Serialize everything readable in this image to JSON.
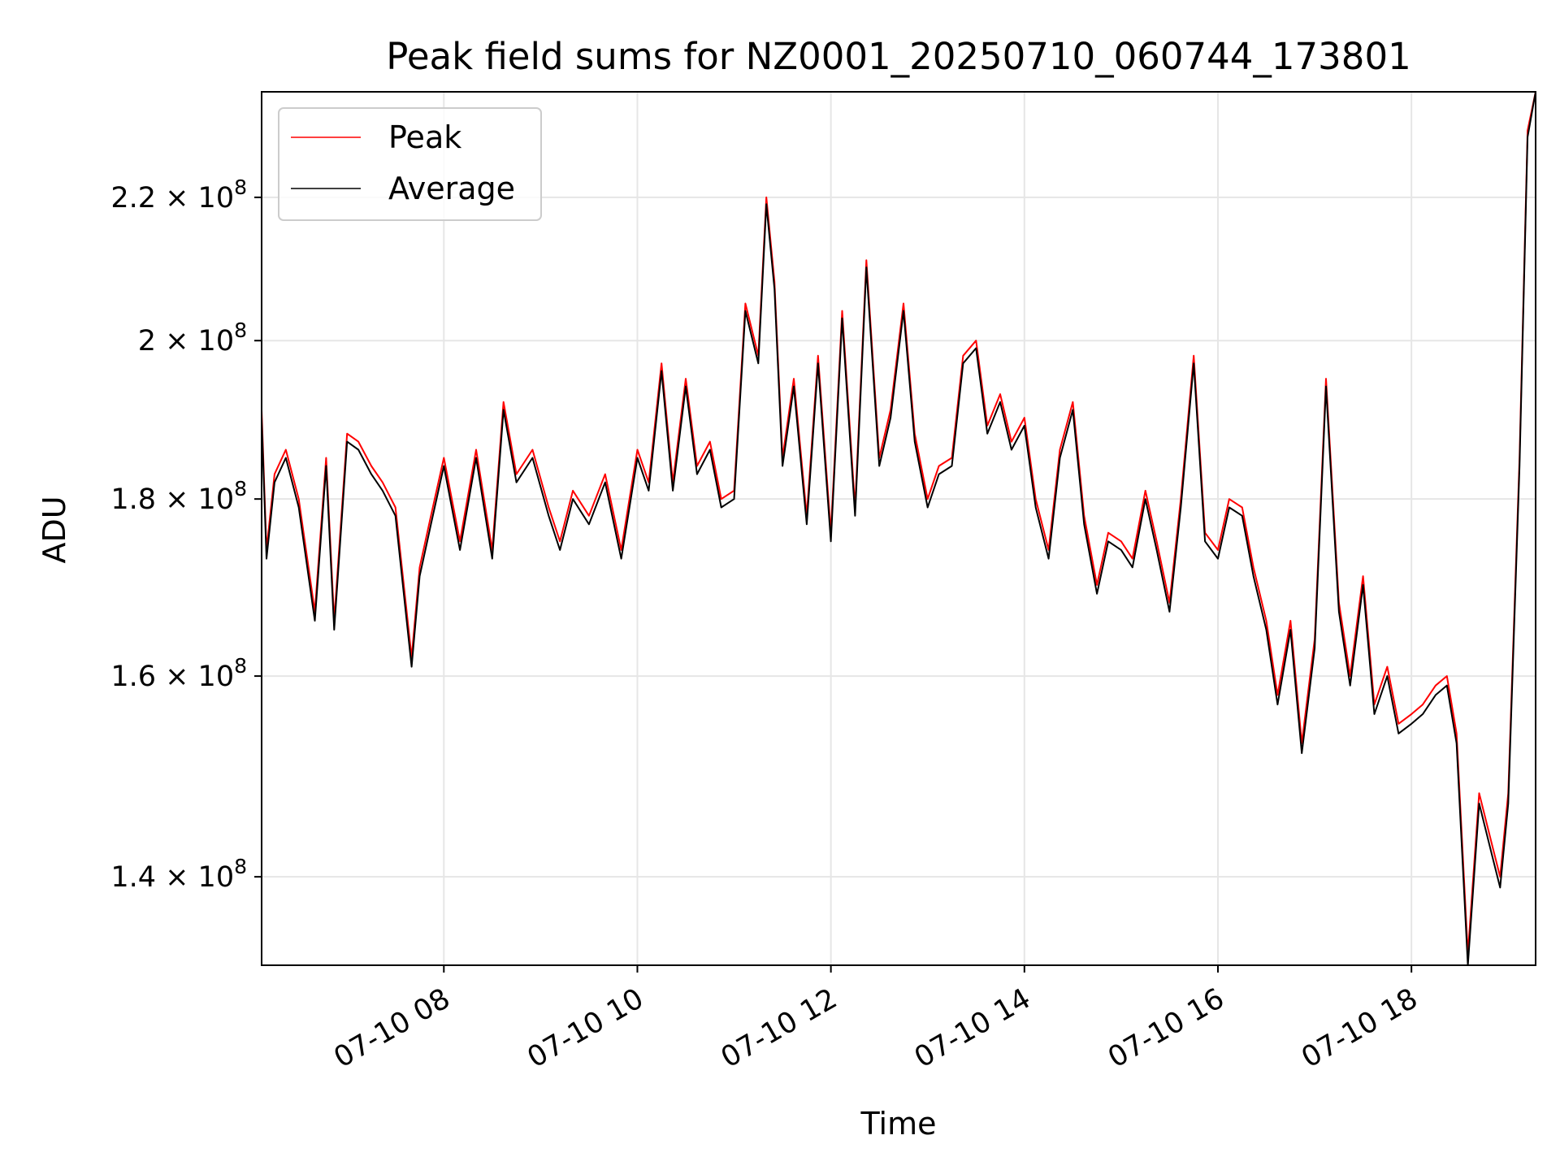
{
  "chart_data": {
    "type": "line",
    "title": "Peak field sums for NZ0001_20250710_060744_173801",
    "xlabel": "Time",
    "ylabel": "ADU",
    "yscale": "log",
    "grid": true,
    "legend": {
      "location": "top-left",
      "entries": [
        {
          "name": "Peak",
          "color": "#ff0000"
        },
        {
          "name": "Average",
          "color": "#000000"
        }
      ]
    },
    "xlim": [
      "2025-07-10 06:07",
      "2025-07-10 19:17"
    ],
    "ylim": [
      132000000.0,
      236000000.0
    ],
    "x_ticks": [
      {
        "value": "2025-07-10 08:00",
        "label": "07-10 08"
      },
      {
        "value": "2025-07-10 10:00",
        "label": "07-10 10"
      },
      {
        "value": "2025-07-10 12:00",
        "label": "07-10 12"
      },
      {
        "value": "2025-07-10 14:00",
        "label": "07-10 14"
      },
      {
        "value": "2025-07-10 16:00",
        "label": "07-10 16"
      },
      {
        "value": "2025-07-10 18:00",
        "label": "07-10 18"
      }
    ],
    "y_ticks": [
      {
        "value": 140000000.0,
        "mantissa": "1.4",
        "exponent": "8"
      },
      {
        "value": 160000000.0,
        "mantissa": "1.6",
        "exponent": "8"
      },
      {
        "value": 180000000.0,
        "mantissa": "1.8",
        "exponent": "8"
      },
      {
        "value": 200000000.0,
        "mantissa": "2",
        "exponent": "8"
      },
      {
        "value": 220000000.0,
        "mantissa": "2.2",
        "exponent": "8"
      }
    ],
    "series": [
      {
        "name": "Peak",
        "color": "#ff0000",
        "x": [
          "2025-07-10 06:07",
          "2025-07-10 06:10",
          "2025-07-10 06:15",
          "2025-07-10 06:22",
          "2025-07-10 06:30",
          "2025-07-10 06:40",
          "2025-07-10 06:47",
          "2025-07-10 06:52",
          "2025-07-10 07:00",
          "2025-07-10 07:07",
          "2025-07-10 07:15",
          "2025-07-10 07:22",
          "2025-07-10 07:30",
          "2025-07-10 07:40",
          "2025-07-10 07:45",
          "2025-07-10 07:52",
          "2025-07-10 08:00",
          "2025-07-10 08:10",
          "2025-07-10 08:20",
          "2025-07-10 08:30",
          "2025-07-10 08:37",
          "2025-07-10 08:45",
          "2025-07-10 08:55",
          "2025-07-10 09:05",
          "2025-07-10 09:12",
          "2025-07-10 09:20",
          "2025-07-10 09:30",
          "2025-07-10 09:40",
          "2025-07-10 09:50",
          "2025-07-10 10:00",
          "2025-07-10 10:07",
          "2025-07-10 10:15",
          "2025-07-10 10:22",
          "2025-07-10 10:30",
          "2025-07-10 10:37",
          "2025-07-10 10:45",
          "2025-07-10 10:52",
          "2025-07-10 11:00",
          "2025-07-10 11:07",
          "2025-07-10 11:15",
          "2025-07-10 11:20",
          "2025-07-10 11:25",
          "2025-07-10 11:30",
          "2025-07-10 11:37",
          "2025-07-10 11:45",
          "2025-07-10 11:52",
          "2025-07-10 12:00",
          "2025-07-10 12:07",
          "2025-07-10 12:15",
          "2025-07-10 12:22",
          "2025-07-10 12:30",
          "2025-07-10 12:37",
          "2025-07-10 12:45",
          "2025-07-10 12:52",
          "2025-07-10 13:00",
          "2025-07-10 13:07",
          "2025-07-10 13:15",
          "2025-07-10 13:22",
          "2025-07-10 13:30",
          "2025-07-10 13:37",
          "2025-07-10 13:45",
          "2025-07-10 13:52",
          "2025-07-10 14:00",
          "2025-07-10 14:07",
          "2025-07-10 14:15",
          "2025-07-10 14:22",
          "2025-07-10 14:30",
          "2025-07-10 14:37",
          "2025-07-10 14:45",
          "2025-07-10 14:52",
          "2025-07-10 15:00",
          "2025-07-10 15:07",
          "2025-07-10 15:15",
          "2025-07-10 15:22",
          "2025-07-10 15:30",
          "2025-07-10 15:37",
          "2025-07-10 15:45",
          "2025-07-10 15:52",
          "2025-07-10 16:00",
          "2025-07-10 16:07",
          "2025-07-10 16:15",
          "2025-07-10 16:22",
          "2025-07-10 16:30",
          "2025-07-10 16:37",
          "2025-07-10 16:45",
          "2025-07-10 16:52",
          "2025-07-10 17:00",
          "2025-07-10 17:07",
          "2025-07-10 17:15",
          "2025-07-10 17:22",
          "2025-07-10 17:30",
          "2025-07-10 17:37",
          "2025-07-10 17:45",
          "2025-07-10 17:52",
          "2025-07-10 18:00",
          "2025-07-10 18:07",
          "2025-07-10 18:15",
          "2025-07-10 18:22",
          "2025-07-10 18:28",
          "2025-07-10 18:35",
          "2025-07-10 18:42",
          "2025-07-10 18:50",
          "2025-07-10 18:55",
          "2025-07-10 19:00",
          "2025-07-10 19:07",
          "2025-07-10 19:12",
          "2025-07-10 19:17"
        ],
        "values": [
          191000000.0,
          174000000.0,
          183000000.0,
          186000000.0,
          180000000.0,
          167000000.0,
          185000000.0,
          166000000.0,
          188000000.0,
          187000000.0,
          184000000.0,
          182000000.0,
          179000000.0,
          162000000.0,
          172000000.0,
          178000000.0,
          185000000.0,
          175000000.0,
          186000000.0,
          174000000.0,
          192000000.0,
          183000000.0,
          186000000.0,
          179000000.0,
          175000000.0,
          181000000.0,
          178000000.0,
          183000000.0,
          174000000.0,
          186000000.0,
          182000000.0,
          197000000.0,
          182000000.0,
          195000000.0,
          184000000.0,
          187000000.0,
          180000000.0,
          181000000.0,
          205000000.0,
          198000000.0,
          220000000.0,
          208000000.0,
          185000000.0,
          195000000.0,
          178000000.0,
          198000000.0,
          176000000.0,
          204000000.0,
          179000000.0,
          211000000.0,
          185000000.0,
          191000000.0,
          205000000.0,
          188000000.0,
          180000000.0,
          184000000.0,
          185000000.0,
          198000000.0,
          200000000.0,
          189000000.0,
          193000000.0,
          187000000.0,
          190000000.0,
          180000000.0,
          174000000.0,
          186000000.0,
          192000000.0,
          178000000.0,
          170000000.0,
          176000000.0,
          175000000.0,
          173000000.0,
          181000000.0,
          175000000.0,
          168000000.0,
          180000000.0,
          198000000.0,
          176000000.0,
          174000000.0,
          180000000.0,
          179000000.0,
          172000000.0,
          166000000.0,
          158000000.0,
          166000000.0,
          153000000.0,
          164000000.0,
          195000000.0,
          168000000.0,
          160000000.0,
          171000000.0,
          157000000.0,
          161000000.0,
          155000000.0,
          156000000.0,
          157000000.0,
          159000000.0,
          160000000.0,
          154000000.0,
          133000000.0,
          148000000.0,
          143000000.0,
          140000000.0,
          148000000.0,
          185000000.0,
          230000000.0,
          236000000.0
        ]
      },
      {
        "name": "Average",
        "color": "#000000",
        "x": [
          "2025-07-10 06:07",
          "2025-07-10 06:10",
          "2025-07-10 06:15",
          "2025-07-10 06:22",
          "2025-07-10 06:30",
          "2025-07-10 06:40",
          "2025-07-10 06:47",
          "2025-07-10 06:52",
          "2025-07-10 07:00",
          "2025-07-10 07:07",
          "2025-07-10 07:15",
          "2025-07-10 07:22",
          "2025-07-10 07:30",
          "2025-07-10 07:40",
          "2025-07-10 07:45",
          "2025-07-10 07:52",
          "2025-07-10 08:00",
          "2025-07-10 08:10",
          "2025-07-10 08:20",
          "2025-07-10 08:30",
          "2025-07-10 08:37",
          "2025-07-10 08:45",
          "2025-07-10 08:55",
          "2025-07-10 09:05",
          "2025-07-10 09:12",
          "2025-07-10 09:20",
          "2025-07-10 09:30",
          "2025-07-10 09:40",
          "2025-07-10 09:50",
          "2025-07-10 10:00",
          "2025-07-10 10:07",
          "2025-07-10 10:15",
          "2025-07-10 10:22",
          "2025-07-10 10:30",
          "2025-07-10 10:37",
          "2025-07-10 10:45",
          "2025-07-10 10:52",
          "2025-07-10 11:00",
          "2025-07-10 11:07",
          "2025-07-10 11:15",
          "2025-07-10 11:20",
          "2025-07-10 11:25",
          "2025-07-10 11:30",
          "2025-07-10 11:37",
          "2025-07-10 11:45",
          "2025-07-10 11:52",
          "2025-07-10 12:00",
          "2025-07-10 12:07",
          "2025-07-10 12:15",
          "2025-07-10 12:22",
          "2025-07-10 12:30",
          "2025-07-10 12:37",
          "2025-07-10 12:45",
          "2025-07-10 12:52",
          "2025-07-10 13:00",
          "2025-07-10 13:07",
          "2025-07-10 13:15",
          "2025-07-10 13:22",
          "2025-07-10 13:30",
          "2025-07-10 13:37",
          "2025-07-10 13:45",
          "2025-07-10 13:52",
          "2025-07-10 14:00",
          "2025-07-10 14:07",
          "2025-07-10 14:15",
          "2025-07-10 14:22",
          "2025-07-10 14:30",
          "2025-07-10 14:37",
          "2025-07-10 14:45",
          "2025-07-10 14:52",
          "2025-07-10 15:00",
          "2025-07-10 15:07",
          "2025-07-10 15:15",
          "2025-07-10 15:22",
          "2025-07-10 15:30",
          "2025-07-10 15:37",
          "2025-07-10 15:45",
          "2025-07-10 15:52",
          "2025-07-10 16:00",
          "2025-07-10 16:07",
          "2025-07-10 16:15",
          "2025-07-10 16:22",
          "2025-07-10 16:30",
          "2025-07-10 16:37",
          "2025-07-10 16:45",
          "2025-07-10 16:52",
          "2025-07-10 17:00",
          "2025-07-10 17:07",
          "2025-07-10 17:15",
          "2025-07-10 17:22",
          "2025-07-10 17:30",
          "2025-07-10 17:37",
          "2025-07-10 17:45",
          "2025-07-10 17:52",
          "2025-07-10 18:00",
          "2025-07-10 18:07",
          "2025-07-10 18:15",
          "2025-07-10 18:22",
          "2025-07-10 18:28",
          "2025-07-10 18:35",
          "2025-07-10 18:42",
          "2025-07-10 18:50",
          "2025-07-10 18:55",
          "2025-07-10 19:00",
          "2025-07-10 19:07",
          "2025-07-10 19:12",
          "2025-07-10 19:17"
        ],
        "values": [
          190000000.0,
          173000000.0,
          182000000.0,
          185000000.0,
          179000000.0,
          166000000.0,
          184000000.0,
          165000000.0,
          187000000.0,
          186000000.0,
          183000000.0,
          181000000.0,
          178000000.0,
          161000000.0,
          171000000.0,
          177000000.0,
          184000000.0,
          174000000.0,
          185000000.0,
          173000000.0,
          191000000.0,
          182000000.0,
          185000000.0,
          178000000.0,
          174000000.0,
          180000000.0,
          177000000.0,
          182000000.0,
          173000000.0,
          185000000.0,
          181000000.0,
          196000000.0,
          181000000.0,
          194000000.0,
          183000000.0,
          186000000.0,
          179000000.0,
          180000000.0,
          204000000.0,
          197000000.0,
          219000000.0,
          207000000.0,
          184000000.0,
          194000000.0,
          177000000.0,
          197000000.0,
          175000000.0,
          203000000.0,
          178000000.0,
          210000000.0,
          184000000.0,
          190000000.0,
          204000000.0,
          187000000.0,
          179000000.0,
          183000000.0,
          184000000.0,
          197000000.0,
          199000000.0,
          188000000.0,
          192000000.0,
          186000000.0,
          189000000.0,
          179000000.0,
          173000000.0,
          185000000.0,
          191000000.0,
          177000000.0,
          169000000.0,
          175000000.0,
          174000000.0,
          172000000.0,
          180000000.0,
          174000000.0,
          167000000.0,
          179000000.0,
          197000000.0,
          175000000.0,
          173000000.0,
          179000000.0,
          178000000.0,
          171000000.0,
          165000000.0,
          157000000.0,
          165000000.0,
          152000000.0,
          163000000.0,
          194000000.0,
          167000000.0,
          159000000.0,
          170000000.0,
          156000000.0,
          160000000.0,
          154000000.0,
          155000000.0,
          156000000.0,
          158000000.0,
          159000000.0,
          153000000.0,
          132000000.0,
          147000000.0,
          142000000.0,
          139000000.0,
          147000000.0,
          184000000.0,
          229000000.0,
          236000000.0
        ]
      }
    ]
  }
}
